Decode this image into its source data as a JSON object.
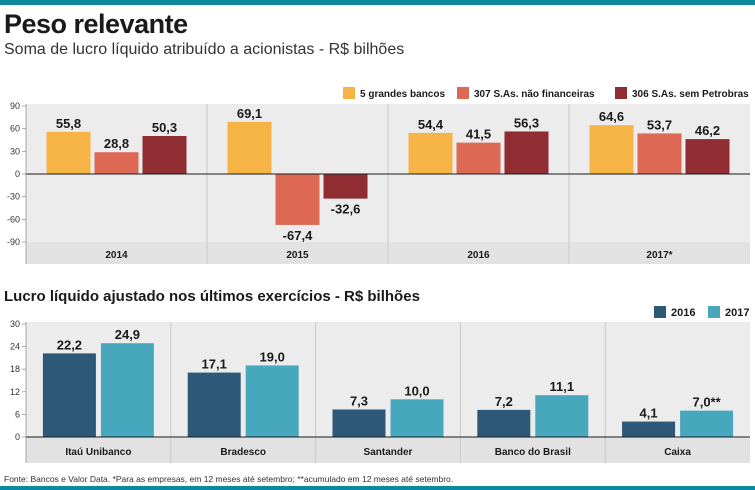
{
  "header": {
    "title": "Peso relevante",
    "subtitle": "Soma de lucro líquido atribuído a acionistas - R$ bilhões"
  },
  "colors": {
    "accent_bar": "#0c8a9b",
    "gold": "#f6b446",
    "salmon": "#dd6853",
    "maroon": "#8f2d33",
    "navy": "#2d5878",
    "teal": "#47a8bd",
    "panel_bg": "#ececec",
    "grid": "#c9c9c9"
  },
  "chart_data": [
    {
      "type": "bar",
      "title": "Peso relevante",
      "subtitle": "Soma de lucro líquido atribuído a acionistas - R$ bilhões",
      "categories": [
        "2014",
        "2015",
        "2016",
        "2017*"
      ],
      "series": [
        {
          "name": "5 grandes bancos",
          "color": "#f6b446",
          "values": [
            55.8,
            69.1,
            54.4,
            64.6
          ],
          "labels": [
            "55,8",
            "69,1",
            "54,4",
            "64,6"
          ]
        },
        {
          "name": "307 S.As. não financeiras",
          "color": "#dd6853",
          "values": [
            28.8,
            -67.4,
            41.5,
            53.7
          ],
          "labels": [
            "28,8",
            "-67,4",
            "41,5",
            "53,7"
          ]
        },
        {
          "name": "306 S.As. sem Petrobras",
          "color": "#8f2d33",
          "values": [
            50.3,
            -32.6,
            56.3,
            46.2
          ],
          "labels": [
            "50,3",
            "-32,6",
            "56,3",
            "46,2"
          ]
        }
      ],
      "yticks": [
        "90",
        "60",
        "30",
        "0",
        "-30",
        "-60",
        "-90"
      ],
      "ytick_values": [
        90,
        60,
        30,
        0,
        -30,
        -60,
        -90
      ],
      "ylim": [
        -90,
        90
      ],
      "legend_position": "top-right",
      "grid": false
    },
    {
      "type": "bar",
      "title": "Lucro líquido ajustado nos últimos exercícios - R$ bilhões",
      "categories": [
        "Itaú Unibanco",
        "Bradesco",
        "Santander",
        "Banco do Brasil",
        "Caixa"
      ],
      "series": [
        {
          "name": "2016",
          "color": "#2d5878",
          "values": [
            22.2,
            17.1,
            7.3,
            7.2,
            4.1
          ],
          "labels": [
            "22,2",
            "17,1",
            "7,3",
            "7,2",
            "4,1"
          ]
        },
        {
          "name": "2017",
          "color": "#47a8bd",
          "values": [
            24.9,
            19.0,
            10.0,
            11.1,
            7.0
          ],
          "labels": [
            "24,9",
            "19,0",
            "10,0",
            "11,1",
            "7,0**"
          ]
        }
      ],
      "yticks": [
        "30",
        "24",
        "18",
        "12",
        "6",
        "0"
      ],
      "ytick_values": [
        30,
        24,
        18,
        12,
        6,
        0
      ],
      "ylim": [
        0,
        30
      ],
      "legend_position": "top-right",
      "grid": false
    }
  ],
  "section2": {
    "title": "Lucro líquido ajustado nos últimos exercícios - R$ bilhões"
  },
  "footer": {
    "source": "Fonte: Bancos e  Valor Data. *Para as empresas, em 12 meses até setembro; **acumulado em 12 meses até setembro."
  }
}
